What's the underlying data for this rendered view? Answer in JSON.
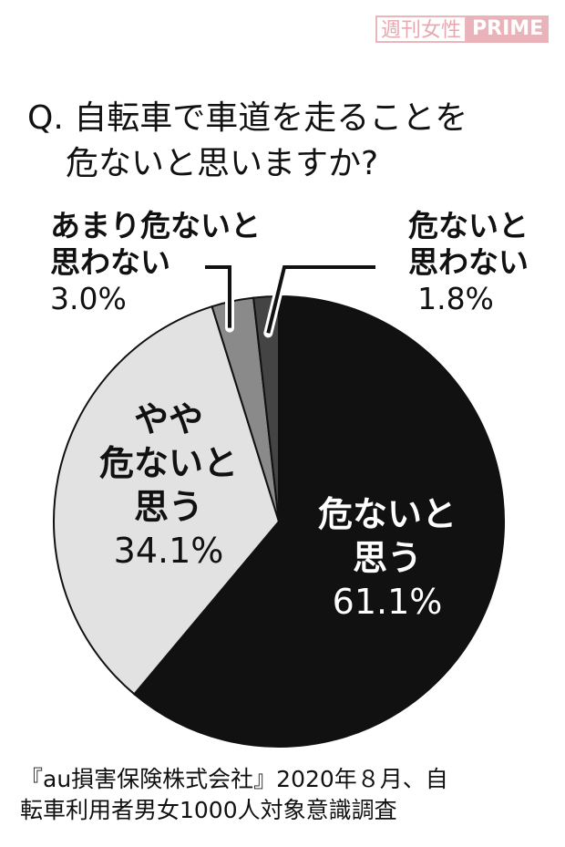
{
  "watermark": {
    "left": "週刊女性",
    "right": "PRIME"
  },
  "chart_data": {
    "type": "pie",
    "title": [
      "Q. 自転車で車道を走ることを",
      "危ないと思いますか?"
    ],
    "start": "12 o'clock, clockwise",
    "slices": [
      {
        "label": [
          "危ないと",
          "思う"
        ],
        "value": 61.1,
        "value_label": "61.1%",
        "color": "#111111"
      },
      {
        "label": [
          "やや",
          "危ないと",
          "思う"
        ],
        "value": 34.1,
        "value_label": "34.1%",
        "color": "#e2e2e2"
      },
      {
        "label": [
          "あまり危ないと",
          "思わない"
        ],
        "value": 3.0,
        "value_label": "3.0%",
        "color": "#8a8a8a"
      },
      {
        "label": [
          "危ないと",
          "思わない"
        ],
        "value": 1.8,
        "value_label": "1.8%",
        "color": "#444444"
      }
    ]
  },
  "footer": [
    "『au損害保険株式会社』2020年８月、自",
    "転車利用者男女1000人対象意識調査"
  ]
}
